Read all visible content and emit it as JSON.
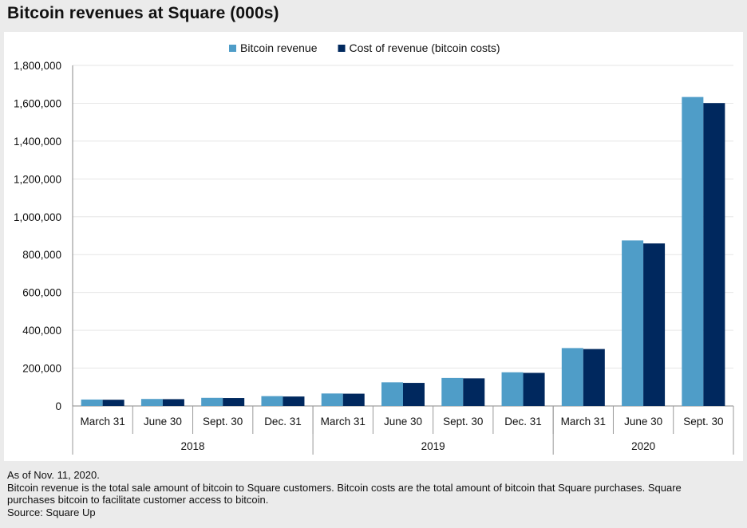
{
  "chart_data": {
    "type": "bar",
    "title": "Bitcoin revenues at Square (000s)",
    "categories": [
      "March 31",
      "June 30",
      "Sept. 30",
      "Dec. 31",
      "March 31",
      "June 30",
      "Sept. 30",
      "Dec. 31",
      "March 31",
      "June 30",
      "Sept. 30"
    ],
    "groups": [
      {
        "label": "2018",
        "count": 4
      },
      {
        "label": "2019",
        "count": 4
      },
      {
        "label": "2020",
        "count": 3
      }
    ],
    "series": [
      {
        "name": "Bitcoin revenue",
        "color": "#4f9dc8",
        "values": [
          34000,
          37000,
          43000,
          52000,
          66000,
          125000,
          148000,
          178000,
          306000,
          875000,
          1633000
        ]
      },
      {
        "name": "Cost of revenue (bitcoin costs)",
        "color": "#00285e",
        "values": [
          33000,
          36000,
          42000,
          50000,
          65000,
          122000,
          146000,
          175000,
          301000,
          859000,
          1601000
        ]
      }
    ],
    "ylim": [
      0,
      1800000
    ],
    "yticks": [
      0,
      200000,
      400000,
      600000,
      800000,
      1000000,
      1200000,
      1400000,
      1600000,
      1800000
    ],
    "ytick_labels": [
      "0",
      "200,000",
      "400,000",
      "600,000",
      "800,000",
      "1,000,000",
      "1,200,000",
      "1,400,000",
      "1,600,000",
      "1,800,000"
    ],
    "legend_position": "top-center",
    "grid": true
  },
  "notes": {
    "as_of": "As of Nov. 11, 2020.",
    "definition": "Bitcoin revenue is the total sale amount of bitcoin to Square customers. Bitcoin costs are the total amount of bitcoin that Square purchases. Square purchases bitcoin to facilitate customer access to bitcoin.",
    "source": "Source: Square Up"
  }
}
